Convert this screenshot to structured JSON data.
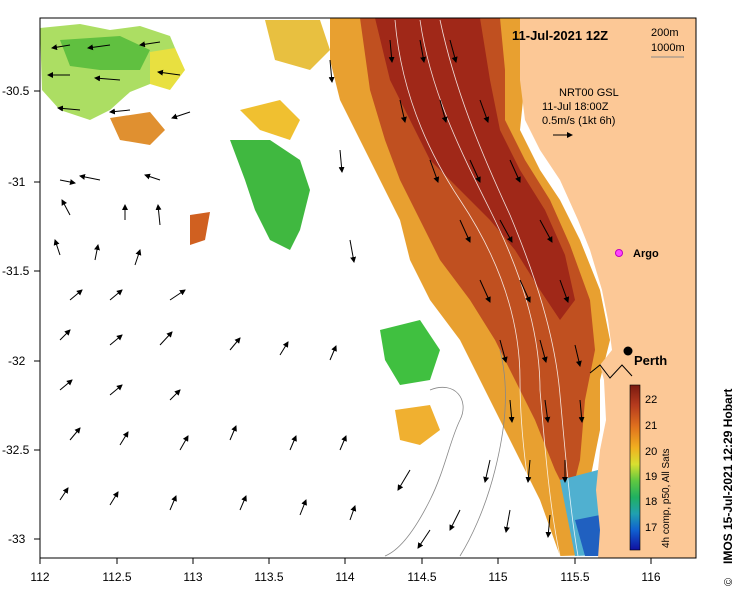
{
  "header": {
    "date_label": "11-Jul-2021 12Z",
    "depth_200": "200m",
    "depth_1000": "1000m"
  },
  "velocity_key": {
    "line1": "NRT00 GSL",
    "line2": "11-Jul 18:00Z",
    "line3": "0.5m/s (1kt 6h)"
  },
  "places": {
    "argo": "Argo",
    "perth": "Perth"
  },
  "axes": {
    "x_ticks": [
      "112",
      "112.5",
      "113",
      "113.5",
      "114",
      "114.5",
      "115",
      "115.5",
      "116"
    ],
    "y_ticks": [
      "-30.5",
      "-31",
      "-31.5",
      "-32",
      "-32.5",
      "-33"
    ]
  },
  "colorbar": {
    "ticks": [
      "22",
      "21",
      "20",
      "19",
      "18",
      "17"
    ],
    "label": "4h comp, p50, All Sats",
    "colors": [
      "#7a1a10",
      "#b53a1e",
      "#e0701e",
      "#f0b020",
      "#d8e030",
      "#60c840",
      "#20b060",
      "#20a0b0",
      "#1060d0",
      "#1010a0"
    ]
  },
  "credit": "IMOS 15-Jul-2021 12:29 Hobart",
  "copyright_symbol": "©",
  "colors": {
    "land": "#fcc896",
    "sst_hot": "#a02818",
    "sst_warm": "#e07a20",
    "sst_mid": "#f0b030",
    "sst_cool": "#40c040"
  }
}
